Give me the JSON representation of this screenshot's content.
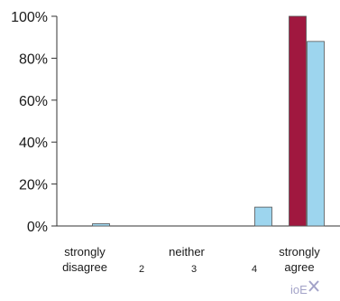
{
  "chart_data": {
    "type": "bar",
    "title": "",
    "xlabel": "",
    "ylabel": "",
    "ylim": [
      0,
      100
    ],
    "yticks": [
      "0%",
      "20%",
      "40%",
      "60%",
      "80%",
      "100%"
    ],
    "ytick_values": [
      0,
      20,
      40,
      60,
      80,
      100
    ],
    "grid": false,
    "legend": "none",
    "categories": [
      "1",
      "2",
      "3",
      "4",
      "5"
    ],
    "category_labels": [
      {
        "line1": "strongly",
        "line2": "disagree"
      },
      {
        "line1": "",
        "line2": "2"
      },
      {
        "line1": "neither",
        "line2": "3"
      },
      {
        "line1": "",
        "line2": "4"
      },
      {
        "line1": "strongly",
        "line2": "agree"
      }
    ],
    "series": [
      {
        "color": "#a0183f",
        "values": [
          0,
          0,
          0,
          0,
          100
        ]
      },
      {
        "color": "#9dd5ee",
        "values": [
          1,
          0,
          0,
          9,
          88
        ]
      }
    ]
  },
  "watermark": {
    "text": "ioE",
    "color": "#a3a3c8"
  }
}
